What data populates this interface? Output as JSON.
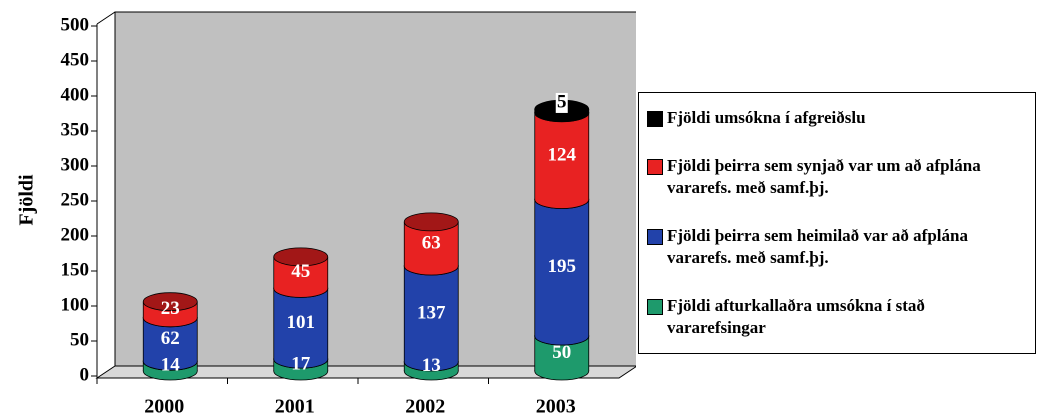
{
  "chart_data": {
    "type": "bar",
    "stacked": true,
    "y_label": "Fjöldi",
    "categories": [
      "2000",
      "2001",
      "2002",
      "2003"
    ],
    "series": [
      {
        "name": "Fjöldi afturkallaðra umsókna í stað vararefsingar",
        "color": "#1e9a6c",
        "values": [
          14,
          17,
          13,
          50
        ]
      },
      {
        "name": "Fjöldi þeirra sem heimilað var að afplána vararefs. með samf.þj.",
        "color": "#2242aa",
        "values": [
          62,
          101,
          137,
          195
        ]
      },
      {
        "name": "Fjöldi þeirra sem synjað var um að afplána vararefs. með samf.þj.",
        "color": "#e82222",
        "values": [
          23,
          45,
          63,
          124
        ]
      },
      {
        "name": "Fjöldi umsókna í afgreiðslu",
        "color": "#000000",
        "values": [
          null,
          null,
          null,
          5
        ]
      }
    ],
    "ylim": [
      0,
      500
    ],
    "yticks": [
      0,
      50,
      100,
      150,
      200,
      250,
      300,
      350,
      400,
      450,
      500
    ]
  }
}
